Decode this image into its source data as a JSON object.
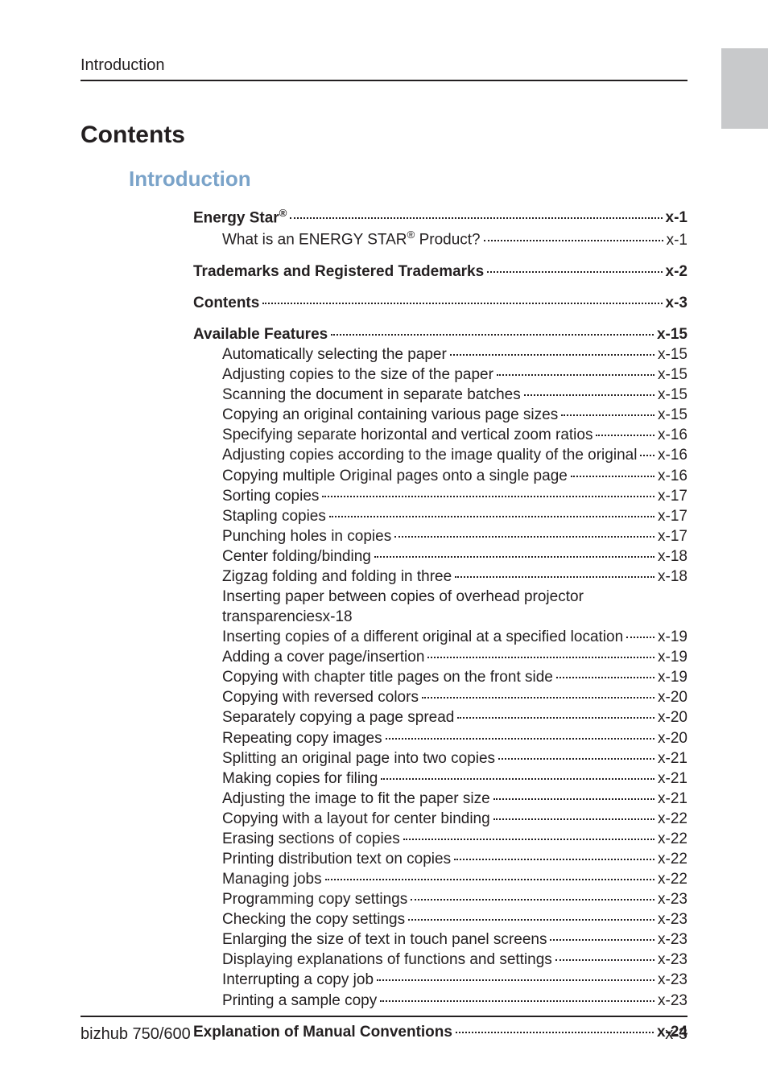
{
  "header": {
    "running_head": "Introduction"
  },
  "title": "Contents",
  "section": "Introduction",
  "toc": {
    "energy_star": {
      "label_pre": "Energy Star",
      "sup": "®",
      "page": "x-1"
    },
    "energy_star_sub": {
      "label_pre": "What is an ENERGY STAR",
      "sup": "®",
      "label_post": " Product?",
      "page": "x-1"
    },
    "trademarks": {
      "label": "Trademarks and Registered Trademarks",
      "page": "x-2"
    },
    "contents": {
      "label": "Contents",
      "page": "x-3"
    },
    "available_features": {
      "label": "Available Features",
      "page": "x-15"
    },
    "af": {
      "auto_select_paper": {
        "label": "Automatically selecting the paper",
        "page": "x-15"
      },
      "adjust_copies_size": {
        "label": "Adjusting copies to the size of the paper",
        "page": "x-15"
      },
      "scan_separate_batches": {
        "label": "Scanning the document in separate batches",
        "page": "x-15"
      },
      "copy_various_page_sizes": {
        "label": "Copying an original containing various page sizes",
        "page": "x-15"
      },
      "specify_zoom_ratios": {
        "label": "Specifying separate horizontal and vertical zoom ratios",
        "page": "x-16"
      },
      "adjust_image_quality": {
        "label": "Adjusting copies according to the image quality of the original",
        "page": "x-16"
      },
      "copy_multiple_pages_single": {
        "label": "Copying multiple Original pages onto a single page",
        "page": "x-16"
      },
      "sorting_copies": {
        "label": "Sorting copies",
        "page": "x-17"
      },
      "stapling_copies": {
        "label": "Stapling copies",
        "page": "x-17"
      },
      "punching_holes": {
        "label": "Punching holes in copies",
        "page": "x-17"
      },
      "center_folding": {
        "label": "Center folding/binding",
        "page": "x-18"
      },
      "zigzag_folding": {
        "label": "Zigzag folding and folding in three",
        "page": "x-18"
      },
      "inserting_overhead": {
        "line1": "Inserting paper between copies of overhead projector",
        "line2": "transparencies",
        "page": "x-18"
      },
      "inserting_diff_original": {
        "label": "Inserting copies of a different original at a specified location",
        "page": "x-19"
      },
      "adding_cover": {
        "label": "Adding a cover page/insertion",
        "page": "x-19"
      },
      "chapter_title_pages": {
        "label": "Copying with chapter title pages on the front side",
        "page": "x-19"
      },
      "reversed_colors": {
        "label": "Copying with reversed colors",
        "page": "x-20"
      },
      "separately_page_spread": {
        "label": "Separately copying a page spread",
        "page": "x-20"
      },
      "repeating_images": {
        "label": "Repeating copy images",
        "page": "x-20"
      },
      "splitting_two_copies": {
        "label": "Splitting an original page into two copies",
        "page": "x-21"
      },
      "making_copies_filing": {
        "label": "Making copies for filing",
        "page": "x-21"
      },
      "adjust_image_paper_size": {
        "label": "Adjusting the image to fit the paper size",
        "page": "x-21"
      },
      "layout_center_binding": {
        "label": "Copying with a layout for center binding",
        "page": "x-22"
      },
      "erasing_sections": {
        "label": "Erasing sections of copies",
        "page": "x-22"
      },
      "printing_distribution": {
        "label": "Printing distribution text on copies",
        "page": "x-22"
      },
      "managing_jobs": {
        "label": "Managing jobs",
        "page": "x-22"
      },
      "programming_settings": {
        "label": "Programming copy settings",
        "page": "x-23"
      },
      "checking_settings": {
        "label": "Checking the copy settings",
        "page": "x-23"
      },
      "enlarging_touch_panel": {
        "label": "Enlarging the size of text in touch panel screens",
        "page": "x-23"
      },
      "displaying_explanations": {
        "label": "Displaying explanations of functions and settings",
        "page": "x-23"
      },
      "interrupting_job": {
        "label": "Interrupting a copy job",
        "page": "x-23"
      },
      "printing_sample": {
        "label": "Printing a sample copy",
        "page": "x-23"
      }
    },
    "explanation_conventions": {
      "label": "Explanation of Manual Conventions",
      "page": "x-24"
    }
  },
  "footer": {
    "model": "bizhub 750/600",
    "page_number": "x-3"
  }
}
